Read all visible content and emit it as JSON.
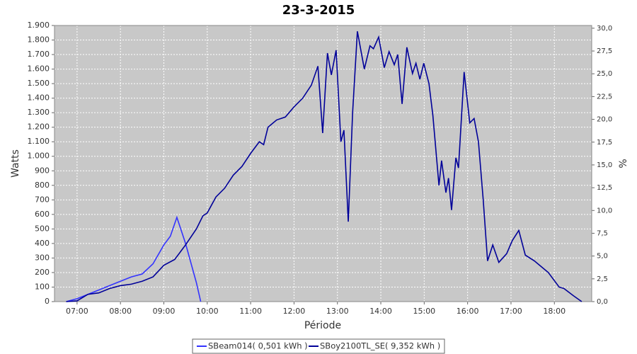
{
  "chart_data": {
    "type": "line",
    "title": "23-3-2015",
    "x_label": "Période",
    "y_label": "Watts",
    "y2_label": "%",
    "xlim": [
      6.48,
      18.86
    ],
    "xticks": [
      {
        "value": 7,
        "label": "07:00"
      },
      {
        "value": 8,
        "label": "08:00"
      },
      {
        "value": 9,
        "label": "09:00"
      },
      {
        "value": 10,
        "label": "10:00"
      },
      {
        "value": 11,
        "label": "11:00"
      },
      {
        "value": 12,
        "label": "12:00"
      },
      {
        "value": 13,
        "label": "13:00"
      },
      {
        "value": 14,
        "label": "14:00"
      },
      {
        "value": 15,
        "label": "15:00"
      },
      {
        "value": 16,
        "label": "16:00"
      },
      {
        "value": 17,
        "label": "17:00"
      },
      {
        "value": 18,
        "label": "18:00"
      }
    ],
    "ylim": [
      0,
      1900
    ],
    "yticks": [
      0,
      100,
      200,
      300,
      400,
      500,
      600,
      700,
      800,
      900,
      {
        "value": 1000,
        "label": "1.000"
      },
      {
        "value": 1100,
        "label": "1.100"
      },
      {
        "value": 1200,
        "label": "1.200"
      },
      {
        "value": 1300,
        "label": "1.300"
      },
      {
        "value": 1400,
        "label": "1.400"
      },
      {
        "value": 1500,
        "label": "1.500"
      },
      {
        "value": 1600,
        "label": "1.600"
      },
      {
        "value": 1700,
        "label": "1.700"
      },
      {
        "value": 1800,
        "label": "1.800"
      },
      {
        "value": 1900,
        "label": "1.900"
      }
    ],
    "y2lim": [
      0,
      30.3
    ],
    "y2ticks": [
      {
        "value": 0,
        "label": "0,0"
      },
      {
        "value": 2.5,
        "label": "2,5"
      },
      {
        "value": 5,
        "label": "5,0"
      },
      {
        "value": 7.5,
        "label": "7,5"
      },
      {
        "value": 10,
        "label": "10,0"
      },
      {
        "value": 12.5,
        "label": "12,5"
      },
      {
        "value": 15,
        "label": "15,0"
      },
      {
        "value": 17.5,
        "label": "17,5"
      },
      {
        "value": 20,
        "label": "20,0"
      },
      {
        "value": 22.5,
        "label": "22,5"
      },
      {
        "value": 25,
        "label": "25,0"
      },
      {
        "value": 27.5,
        "label": "27,5"
      },
      {
        "value": 30,
        "label": "30,0"
      }
    ],
    "grid": true,
    "legend": "bottom",
    "series": [
      {
        "name": "SBeam014( 0,501 kWh )",
        "color": "#3333ff",
        "x": [
          6.75,
          7.0,
          7.25,
          7.5,
          7.75,
          8.0,
          8.25,
          8.5,
          8.75,
          9.0,
          9.15,
          9.3,
          9.5,
          9.75,
          9.85
        ],
        "values": [
          0,
          20,
          50,
          80,
          110,
          140,
          170,
          190,
          260,
          390,
          450,
          580,
          400,
          130,
          0
        ]
      },
      {
        "name": "SBoy2100TL_SE( 9,352 kWh )",
        "color": "#000099",
        "x": [
          6.75,
          7.0,
          7.25,
          7.5,
          7.75,
          8.0,
          8.25,
          8.5,
          8.75,
          9.0,
          9.25,
          9.5,
          9.75,
          9.9,
          10.0,
          10.2,
          10.4,
          10.6,
          10.8,
          11.0,
          11.2,
          11.3,
          11.4,
          11.6,
          11.8,
          12.0,
          12.2,
          12.4,
          12.55,
          12.66,
          12.77,
          12.86,
          12.97,
          13.08,
          13.15,
          13.25,
          13.35,
          13.46,
          13.62,
          13.75,
          13.83,
          13.95,
          14.08,
          14.19,
          14.31,
          14.39,
          14.49,
          14.6,
          14.73,
          14.81,
          14.9,
          14.99,
          15.11,
          15.2,
          15.34,
          15.4,
          15.5,
          15.56,
          15.63,
          15.73,
          15.79,
          15.92,
          16.05,
          16.15,
          16.25,
          16.36,
          16.46,
          16.58,
          16.72,
          16.9,
          17.03,
          17.18,
          17.33,
          17.54,
          17.86,
          18.11,
          18.22,
          18.44,
          18.63
        ],
        "values": [
          0,
          5,
          50,
          60,
          90,
          110,
          120,
          140,
          170,
          250,
          290,
          390,
          500,
          590,
          610,
          720,
          780,
          870,
          930,
          1020,
          1100,
          1080,
          1200,
          1250,
          1270,
          1340,
          1400,
          1490,
          1620,
          1160,
          1710,
          1560,
          1730,
          1100,
          1180,
          550,
          1300,
          1860,
          1600,
          1760,
          1740,
          1820,
          1610,
          1720,
          1630,
          1700,
          1360,
          1750,
          1570,
          1640,
          1530,
          1640,
          1500,
          1280,
          800,
          970,
          750,
          850,
          630,
          990,
          920,
          1580,
          1230,
          1260,
          1100,
          700,
          280,
          390,
          270,
          330,
          420,
          490,
          320,
          280,
          200,
          100,
          90,
          40,
          0
        ]
      }
    ]
  }
}
